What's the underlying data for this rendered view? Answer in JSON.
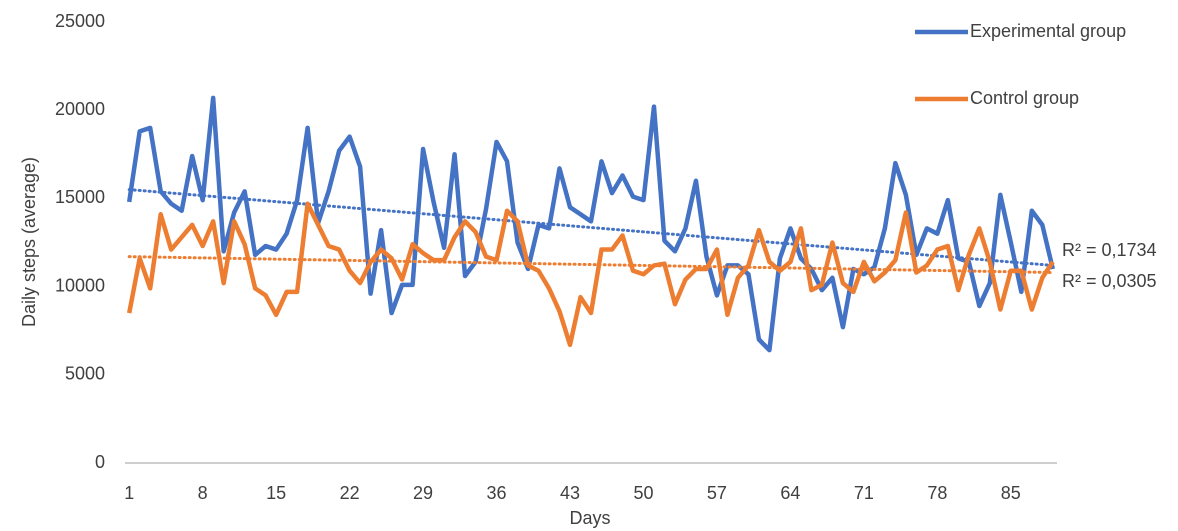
{
  "chart_data": {
    "type": "line",
    "x_label": "Days",
    "y_label": "Daily steps (average)",
    "x": [
      1,
      2,
      3,
      4,
      5,
      6,
      7,
      8,
      9,
      10,
      11,
      12,
      13,
      14,
      15,
      16,
      17,
      18,
      19,
      20,
      21,
      22,
      23,
      24,
      25,
      26,
      27,
      28,
      29,
      30,
      31,
      32,
      33,
      34,
      35,
      36,
      37,
      38,
      39,
      40,
      41,
      42,
      43,
      44,
      45,
      46,
      47,
      48,
      49,
      50,
      51,
      52,
      53,
      54,
      55,
      56,
      57,
      58,
      59,
      60,
      61,
      62,
      63,
      64,
      65,
      66,
      67,
      68,
      69,
      70,
      71,
      72,
      73,
      74,
      75,
      76,
      77,
      78,
      79,
      80,
      81,
      82,
      83,
      84,
      85,
      86,
      87,
      88,
      89
    ],
    "xlim": [
      0.6,
      89.4
    ],
    "xticks": [
      1,
      8,
      15,
      22,
      29,
      36,
      43,
      50,
      57,
      64,
      71,
      78,
      85
    ],
    "ylim": [
      0,
      25000
    ],
    "yticks": [
      0,
      5000,
      10000,
      15000,
      20000,
      25000
    ],
    "legend": "top-right",
    "series": [
      {
        "name": "Experimental group",
        "color": "#4472c4",
        "values": [
          14800,
          18800,
          19000,
          15400,
          14700,
          14300,
          17400,
          14900,
          20700,
          12000,
          14200,
          15400,
          11800,
          12300,
          12100,
          13000,
          14900,
          19000,
          13600,
          15400,
          17700,
          18500,
          16800,
          9600,
          13200,
          8500,
          10100,
          10100,
          17800,
          14800,
          12200,
          17500,
          10600,
          11400,
          14400,
          18200,
          17100,
          12500,
          11000,
          13500,
          13300,
          16700,
          14500,
          14100,
          13700,
          17100,
          15300,
          16300,
          15100,
          14900,
          20200,
          12600,
          12000,
          13300,
          16000,
          11700,
          9500,
          11200,
          11200,
          10700,
          7000,
          6400,
          11600,
          13300,
          11600,
          11000,
          9800,
          10500,
          7700,
          11000,
          10700,
          11100,
          13300,
          17000,
          15200,
          11800,
          13300,
          13000,
          14900,
          11600,
          11400,
          8900,
          10200,
          15200,
          12500,
          9700,
          14300,
          13500,
          11000
        ],
        "trend": [
          15500,
          11200
        ],
        "r2_label": "R² = 0,1734"
      },
      {
        "name": "Control group",
        "color": "#ed7d31",
        "values": [
          8500,
          11600,
          9900,
          14100,
          12100,
          12800,
          13500,
          12300,
          13700,
          10200,
          13700,
          12400,
          9900,
          9500,
          8400,
          9700,
          9700,
          14700,
          13500,
          12300,
          12100,
          10900,
          10200,
          11400,
          12100,
          11600,
          10400,
          12400,
          11900,
          11500,
          11500,
          12800,
          13700,
          13100,
          11700,
          11500,
          14300,
          13700,
          11200,
          10900,
          9900,
          8600,
          6700,
          9400,
          8500,
          12100,
          12100,
          12900,
          10900,
          10700,
          11200,
          11300,
          9000,
          10400,
          11000,
          11000,
          12100,
          8400,
          10500,
          11200,
          13200,
          11400,
          10900,
          11400,
          13300,
          9800,
          10100,
          12500,
          10200,
          9700,
          11400,
          10300,
          10800,
          11500,
          14200,
          10800,
          11200,
          12100,
          12300,
          9800,
          11800,
          13300,
          11400,
          8700,
          10900,
          10900,
          8700,
          10500,
          11400
        ],
        "trend": [
          11700,
          10800
        ],
        "r2_label": "R² = 0,0305"
      }
    ]
  }
}
